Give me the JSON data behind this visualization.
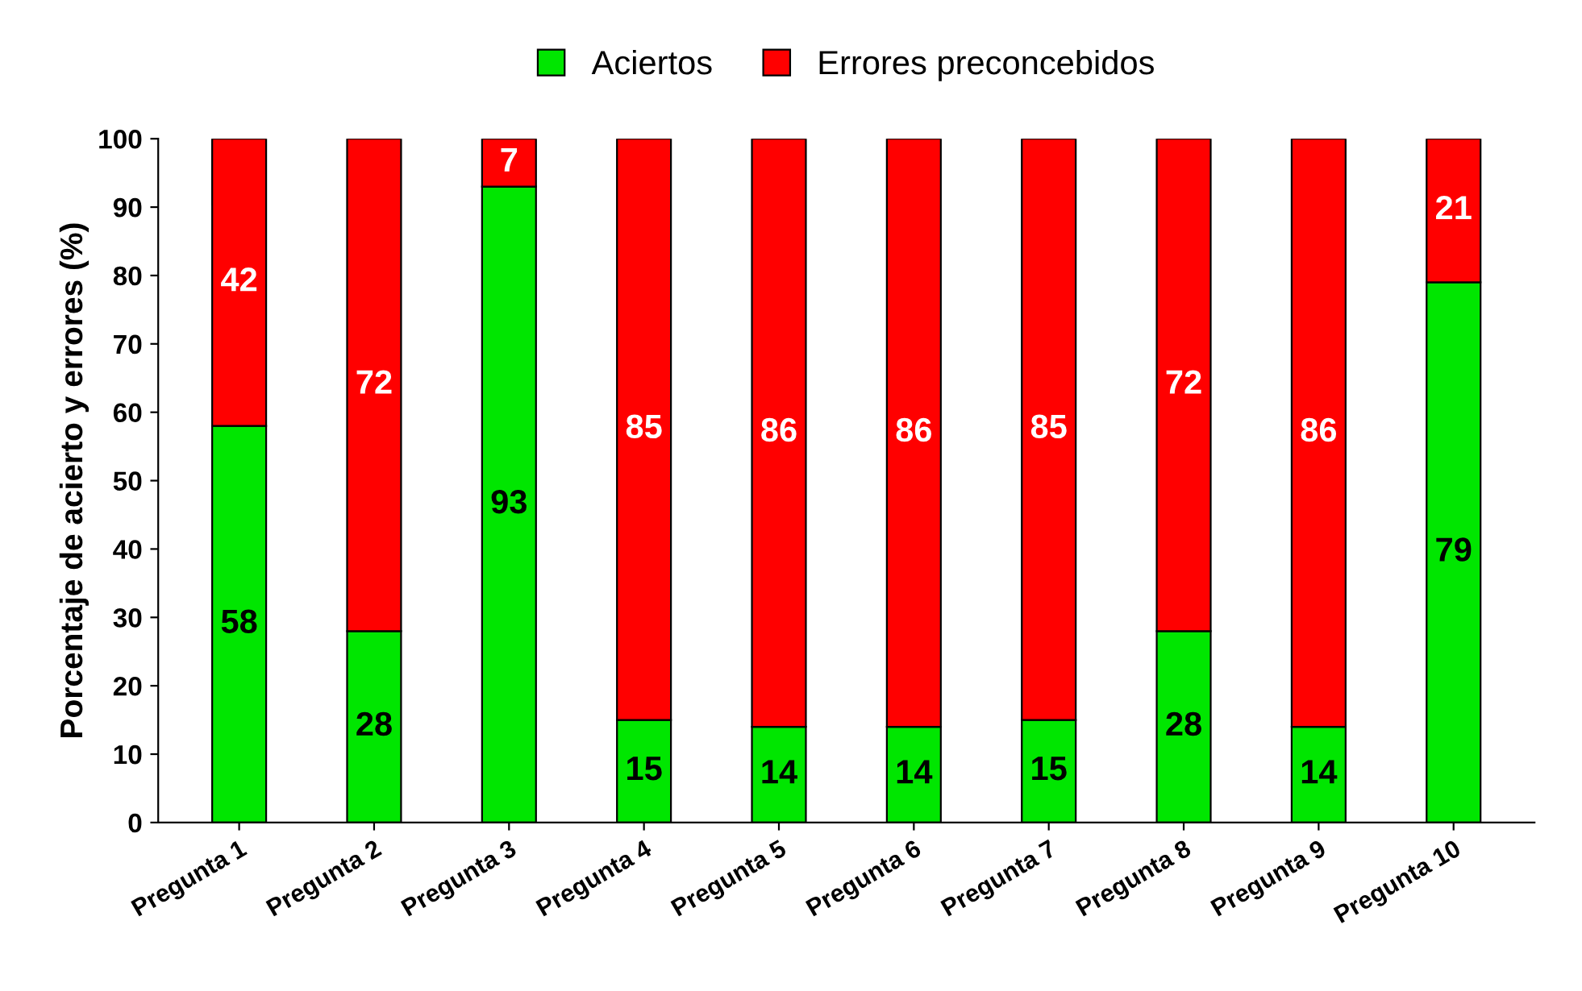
{
  "chart_data": {
    "type": "bar",
    "stacked": true,
    "ylabel": "Porcentaje de acierto y errores (%)",
    "categories": [
      "Pregunta 1",
      "Pregunta 2",
      "Pregunta 3",
      "Pregunta 4",
      "Pregunta 5",
      "Pregunta 6",
      "Pregunta 7",
      "Pregunta 8",
      "Pregunta 9",
      "Pregunta 10"
    ],
    "series": [
      {
        "name": "Aciertos",
        "color": "#00e600",
        "values": [
          58,
          28,
          93,
          15,
          14,
          14,
          15,
          28,
          14,
          79
        ]
      },
      {
        "name": "Errores preconcebidos",
        "color": "#ff0000",
        "values": [
          42,
          72,
          7,
          85,
          86,
          86,
          85,
          72,
          86,
          21
        ]
      }
    ],
    "ylim": [
      0,
      100
    ],
    "yticks": [
      0,
      10,
      20,
      30,
      40,
      50,
      60,
      70,
      80,
      90,
      100
    ],
    "grid": false,
    "legend": "top",
    "data_labels": true
  }
}
